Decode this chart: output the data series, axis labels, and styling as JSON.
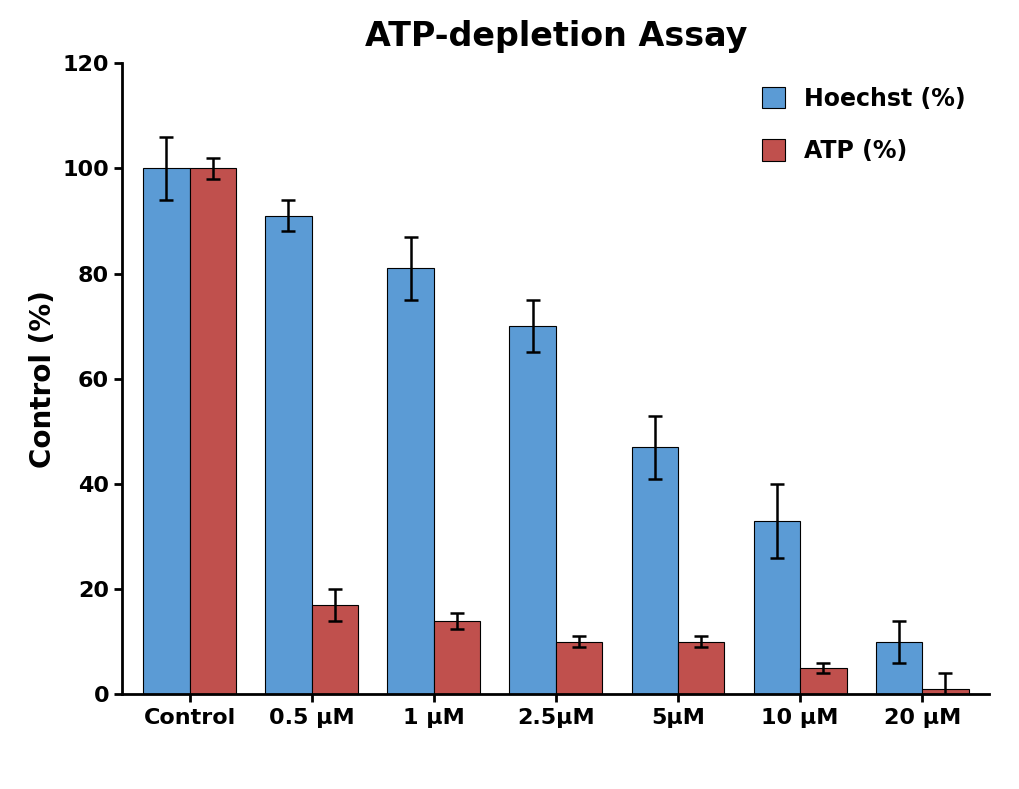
{
  "title": "ATP-depletion Assay",
  "xlabel": "",
  "ylabel": "Control (%)",
  "categories": [
    "Control",
    "0.5 μM",
    "1 μM",
    "2.5μM",
    "5μM",
    "10 μM",
    "20 μM"
  ],
  "hoechst_values": [
    100,
    91,
    81,
    70,
    47,
    33,
    10
  ],
  "atp_values": [
    100,
    17,
    14,
    10,
    10,
    5,
    1
  ],
  "hoechst_errors": [
    6,
    3,
    6,
    5,
    6,
    7,
    4
  ],
  "atp_errors": [
    2,
    3,
    1.5,
    1,
    1,
    1,
    3
  ],
  "hoechst_color": "#5B9BD5",
  "atp_color": "#C0504D",
  "ylim": [
    0,
    120
  ],
  "yticks": [
    0,
    20,
    40,
    60,
    80,
    100,
    120
  ],
  "bar_width": 0.38,
  "legend_labels": [
    "Hoechst (%)",
    "ATP (%)"
  ],
  "title_fontsize": 24,
  "axis_label_fontsize": 20,
  "tick_fontsize": 16,
  "legend_fontsize": 17
}
